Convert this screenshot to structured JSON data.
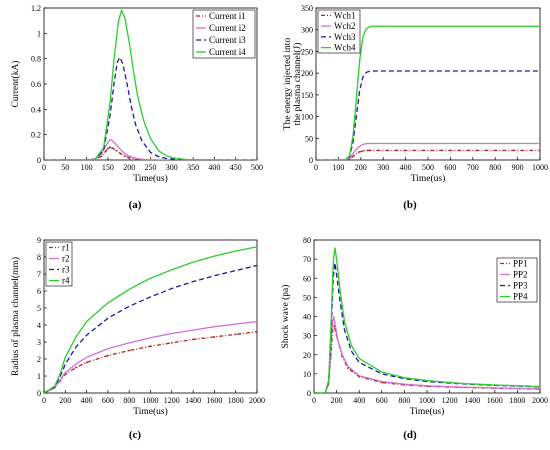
{
  "chart_data": [
    {
      "id": "a",
      "panel_label": "(a)",
      "type": "line",
      "xlabel": "Time(us)",
      "ylabel": "Current(kA)",
      "xlim": [
        0,
        500
      ],
      "ylim": [
        0,
        1.2
      ],
      "xticks": [
        0,
        50,
        100,
        150,
        200,
        250,
        300,
        350,
        400,
        450,
        500
      ],
      "xtick_labels": [
        "0",
        "50",
        "100",
        "150",
        "200",
        "250",
        "300",
        "350",
        "400",
        "450",
        "500"
      ],
      "yticks": [
        0,
        0.2,
        0.4,
        0.6,
        0.8,
        1,
        1.2
      ],
      "ytick_labels": [
        "0",
        "0.2",
        "0.4",
        "0.6",
        "0.8",
        "1",
        "1.2"
      ],
      "legend_position": "top-right",
      "series": [
        {
          "name": "Current i1",
          "color": "#b22222",
          "style": "dashdot-marker",
          "x": [
            0,
            100,
            120,
            135,
            145,
            150,
            155,
            160,
            170,
            180,
            190,
            200,
            220,
            240,
            260,
            300,
            500
          ],
          "y": [
            0,
            0,
            0.005,
            0.03,
            0.07,
            0.09,
            0.1,
            0.095,
            0.075,
            0.05,
            0.03,
            0.018,
            0.006,
            0.002,
            0,
            0,
            0
          ]
        },
        {
          "name": "Current i2",
          "color": "#d070d8",
          "style": "solid",
          "x": [
            0,
            100,
            120,
            135,
            145,
            150,
            155,
            160,
            170,
            180,
            190,
            200,
            220,
            240,
            260,
            300,
            500
          ],
          "y": [
            0,
            0,
            0.01,
            0.05,
            0.11,
            0.14,
            0.16,
            0.155,
            0.12,
            0.08,
            0.05,
            0.03,
            0.01,
            0.003,
            0,
            0,
            0
          ]
        },
        {
          "name": "Current i3",
          "color": "#1a1a9e",
          "style": "dashed",
          "x": [
            0,
            100,
            120,
            140,
            155,
            165,
            172,
            178,
            185,
            195,
            205,
            215,
            230,
            250,
            270,
            290,
            310,
            340,
            400,
            500
          ],
          "y": [
            0,
            0,
            0.005,
            0.08,
            0.35,
            0.62,
            0.77,
            0.81,
            0.76,
            0.6,
            0.42,
            0.28,
            0.15,
            0.06,
            0.025,
            0.01,
            0.004,
            0,
            0,
            0
          ]
        },
        {
          "name": "Current i4",
          "color": "#2ecc2e",
          "style": "solid",
          "x": [
            0,
            100,
            120,
            140,
            155,
            165,
            175,
            182,
            190,
            200,
            210,
            220,
            235,
            250,
            270,
            290,
            310,
            340,
            380,
            500
          ],
          "y": [
            0,
            0,
            0.005,
            0.1,
            0.45,
            0.82,
            1.1,
            1.18,
            1.12,
            0.93,
            0.7,
            0.5,
            0.3,
            0.17,
            0.07,
            0.03,
            0.012,
            0.003,
            0,
            0
          ]
        }
      ]
    },
    {
      "id": "b",
      "panel_label": "(b)",
      "type": "line",
      "xlabel": "Time(us)",
      "ylabel_lines": [
        "The energy injected into",
        "the plasma channel(J)"
      ],
      "xlim": [
        0,
        1000
      ],
      "ylim": [
        0,
        350
      ],
      "xticks": [
        0,
        100,
        200,
        300,
        400,
        500,
        600,
        700,
        800,
        900,
        1000
      ],
      "xtick_labels": [
        "0",
        "100",
        "200",
        "300",
        "400",
        "500",
        "600",
        "700",
        "800",
        "900",
        "1000"
      ],
      "yticks": [
        0,
        50,
        100,
        150,
        200,
        250,
        300,
        350
      ],
      "ytick_labels": [
        "0",
        "50",
        "100",
        "150",
        "200",
        "250",
        "300",
        "350"
      ],
      "legend_position": "top-left",
      "series": [
        {
          "name": "Wch1",
          "color": "#b22222",
          "style": "dashdot-marker",
          "x": [
            0,
            130,
            150,
            170,
            190,
            210,
            230,
            1000
          ],
          "y": [
            0,
            0,
            2,
            10,
            18,
            21,
            22,
            22
          ]
        },
        {
          "name": "Wch2",
          "color": "#d070d8",
          "style": "solid",
          "x": [
            0,
            130,
            150,
            170,
            190,
            210,
            230,
            1000
          ],
          "y": [
            0,
            0,
            4,
            18,
            30,
            36,
            38,
            38
          ]
        },
        {
          "name": "Wch3",
          "color": "#1a1a9e",
          "style": "dashed",
          "x": [
            0,
            130,
            150,
            165,
            180,
            195,
            210,
            225,
            245,
            1000
          ],
          "y": [
            0,
            0,
            8,
            40,
            100,
            160,
            192,
            202,
            205,
            205
          ]
        },
        {
          "name": "Wch4",
          "color": "#2ecc2e",
          "style": "solid",
          "x": [
            0,
            130,
            150,
            165,
            180,
            195,
            210,
            225,
            245,
            1000
          ],
          "y": [
            0,
            0,
            10,
            55,
            140,
            230,
            285,
            302,
            308,
            308
          ]
        }
      ]
    },
    {
      "id": "c",
      "panel_label": "(c)",
      "type": "line",
      "xlabel": "Time(us)",
      "ylabel": "Radius of plasma channel(mm)",
      "xlim": [
        0,
        2000
      ],
      "ylim": [
        0,
        9
      ],
      "xticks": [
        0,
        200,
        400,
        600,
        800,
        1000,
        1200,
        1400,
        1600,
        1800,
        2000
      ],
      "xtick_labels": [
        "0",
        "200",
        "400",
        "600",
        "800",
        "1000",
        "1200",
        "1400",
        "1600",
        "1800",
        "2000"
      ],
      "yticks": [
        0,
        1,
        2,
        3,
        4,
        5,
        6,
        7,
        8,
        9
      ],
      "ytick_labels": [
        "0",
        "1",
        "2",
        "3",
        "4",
        "5",
        "6",
        "7",
        "8",
        "9"
      ],
      "legend_position": "top-left",
      "series": [
        {
          "name": "r1",
          "color": "#b22222",
          "style": "dashdot-marker",
          "x": [
            0,
            100,
            150,
            200,
            300,
            400,
            600,
            800,
            1000,
            1200,
            1400,
            1600,
            1800,
            2000
          ],
          "y": [
            0,
            0.3,
            0.7,
            1.1,
            1.5,
            1.8,
            2.2,
            2.5,
            2.75,
            2.95,
            3.15,
            3.3,
            3.45,
            3.6
          ]
        },
        {
          "name": "r2",
          "color": "#d070d8",
          "style": "solid",
          "x": [
            0,
            100,
            150,
            200,
            300,
            400,
            600,
            800,
            1000,
            1200,
            1400,
            1600,
            1800,
            2000
          ],
          "y": [
            0,
            0.3,
            0.75,
            1.2,
            1.7,
            2.1,
            2.6,
            2.95,
            3.25,
            3.5,
            3.7,
            3.9,
            4.05,
            4.2
          ]
        },
        {
          "name": "r3",
          "color": "#1a1a9e",
          "style": "dashed",
          "x": [
            0,
            100,
            150,
            200,
            300,
            400,
            600,
            800,
            1000,
            1200,
            1400,
            1600,
            1800,
            2000
          ],
          "y": [
            0,
            0.35,
            0.95,
            1.7,
            2.7,
            3.4,
            4.4,
            5.1,
            5.65,
            6.15,
            6.55,
            6.9,
            7.2,
            7.5
          ]
        },
        {
          "name": "r4",
          "color": "#2ecc2e",
          "style": "solid",
          "x": [
            0,
            100,
            150,
            200,
            300,
            400,
            600,
            800,
            1000,
            1200,
            1400,
            1600,
            1800,
            2000
          ],
          "y": [
            0,
            0.4,
            1.1,
            2.1,
            3.3,
            4.2,
            5.3,
            6.1,
            6.75,
            7.25,
            7.7,
            8.05,
            8.35,
            8.6
          ]
        }
      ]
    },
    {
      "id": "d",
      "panel_label": "(d)",
      "type": "line",
      "xlabel": "Time(us)",
      "ylabel": "Shock wave (pa)",
      "xlim": [
        0,
        2000
      ],
      "ylim": [
        0,
        80
      ],
      "xticks": [
        0,
        200,
        400,
        600,
        800,
        1000,
        1200,
        1400,
        1600,
        1800,
        2000
      ],
      "xtick_labels": [
        "0",
        "200",
        "400",
        "600",
        "800",
        "1000",
        "1200",
        "1400",
        "1600",
        "1800",
        "2000"
      ],
      "yticks": [
        0,
        10,
        20,
        30,
        40,
        50,
        60,
        70,
        80
      ],
      "ytick_labels": [
        "0",
        "10",
        "20",
        "30",
        "40",
        "50",
        "60",
        "70",
        "80"
      ],
      "legend_position": "top-right",
      "series": [
        {
          "name": "PP1",
          "color": "#b22222",
          "style": "dashdot-marker",
          "x": [
            0,
            100,
            130,
            150,
            165,
            180,
            200,
            250,
            300,
            400,
            600,
            800,
            1000,
            1300,
            1600,
            2000
          ],
          "y": [
            0,
            0,
            5,
            20,
            33,
            35,
            30,
            19,
            13,
            8.5,
            5.5,
            4.2,
            3.5,
            2.9,
            2.5,
            2
          ]
        },
        {
          "name": "PP2",
          "color": "#d070d8",
          "style": "solid",
          "x": [
            0,
            100,
            130,
            150,
            165,
            175,
            190,
            210,
            250,
            300,
            400,
            600,
            800,
            1000,
            1300,
            1600,
            2000
          ],
          "y": [
            0,
            0,
            6,
            25,
            38,
            40,
            35,
            28,
            20,
            14,
            9,
            6,
            4.6,
            3.8,
            3.1,
            2.7,
            2.2
          ]
        },
        {
          "name": "PP3",
          "color": "#1a1a9e",
          "style": "dashed",
          "x": [
            0,
            100,
            130,
            150,
            170,
            185,
            200,
            230,
            270,
            330,
            400,
            600,
            800,
            1000,
            1300,
            1600,
            2000
          ],
          "y": [
            0,
            0,
            6,
            30,
            60,
            68,
            62,
            48,
            33,
            22,
            16,
            10,
            7.5,
            6,
            4.8,
            4,
            3.2
          ]
        },
        {
          "name": "PP4",
          "color": "#2ecc2e",
          "style": "solid",
          "x": [
            0,
            100,
            130,
            150,
            170,
            185,
            200,
            230,
            270,
            330,
            400,
            600,
            800,
            1000,
            1300,
            1600,
            2000
          ],
          "y": [
            0,
            0,
            7,
            35,
            68,
            76,
            70,
            54,
            37,
            25,
            18,
            11,
            8,
            6.5,
            5,
            4.2,
            3.4
          ]
        }
      ]
    }
  ]
}
